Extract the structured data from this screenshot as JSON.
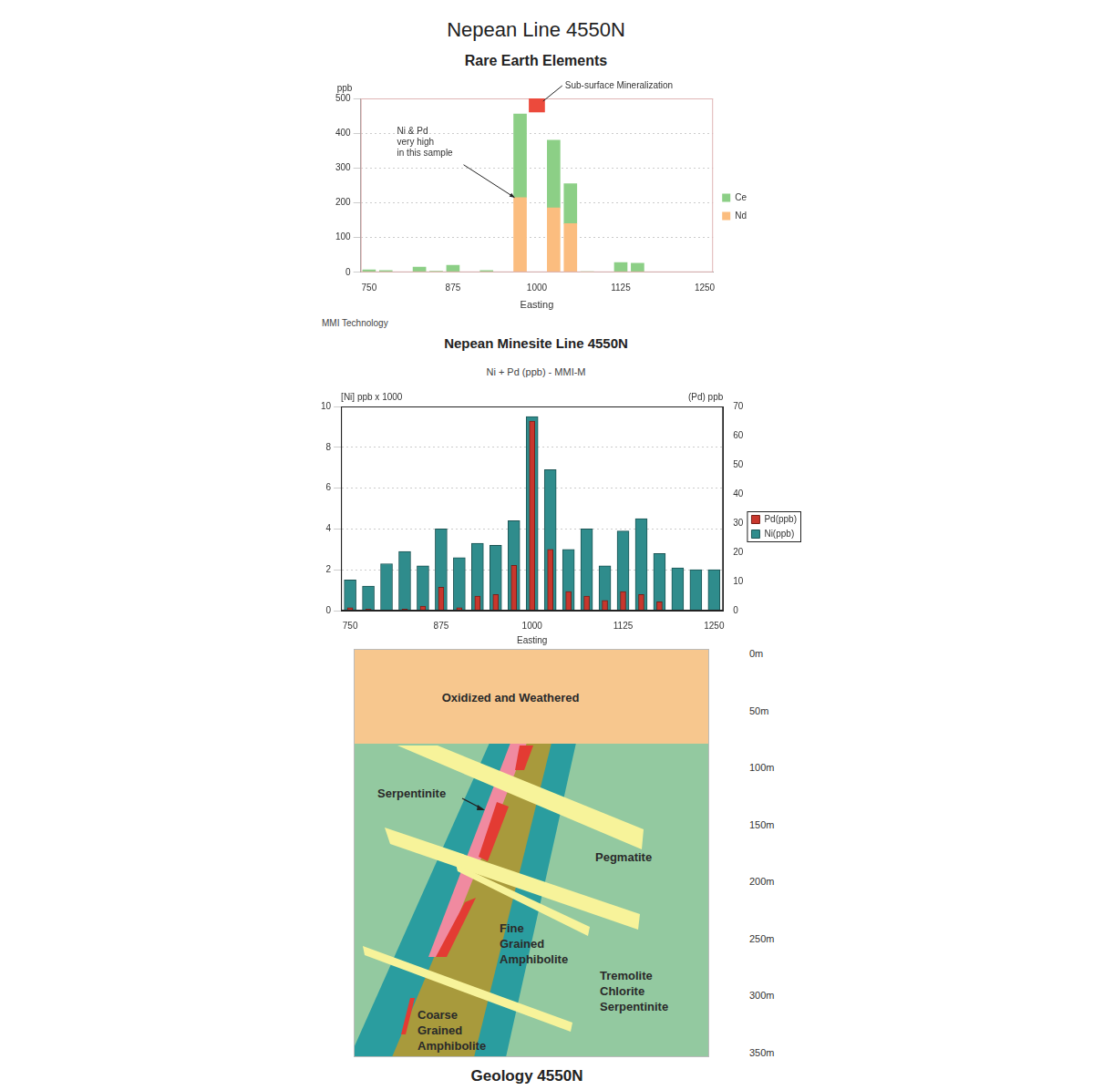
{
  "title": "Nepean Line 4550N",
  "chart_data": [
    {
      "type": "bar",
      "title": "Rare Earth Elements",
      "x_label": "Easting",
      "y_label": "ppb",
      "stacked": true,
      "grid": true,
      "legend": "right",
      "x": [
        750,
        775,
        825,
        850,
        875,
        925,
        975,
        1025,
        1050,
        1075,
        1125,
        1150
      ],
      "series": [
        {
          "name": "Ce",
          "color": "#8ccf86",
          "values": [
            7,
            5,
            15,
            3,
            20,
            5,
            240,
            195,
            115,
            2,
            28,
            26
          ]
        },
        {
          "name": "Nd",
          "color": "#fbbd7f",
          "values": [
            0,
            0,
            0,
            0,
            0,
            0,
            215,
            185,
            140,
            0,
            0,
            0
          ]
        }
      ],
      "xlim": [
        737.5,
        1262.5
      ],
      "xticks": [
        750,
        875,
        1000,
        1125,
        1250
      ],
      "ylim": [
        0,
        500
      ],
      "yticks": [
        0,
        100,
        200,
        300,
        400,
        500
      ],
      "annotations": [
        {
          "text": "Sub-surface Mineralization",
          "x": [
            988,
            1012
          ],
          "y": [
            460,
            500
          ],
          "color": "#ec4a3c"
        },
        {
          "text": [
            "Ni & Pd",
            "very high",
            "in this sample"
          ],
          "x": 975,
          "y": 215
        }
      ],
      "source": "MMI Technology"
    },
    {
      "type": "bar",
      "title": "Nepean Minesite Line 4550N",
      "subtitle": "Ni + Pd (ppb) - MMI-M",
      "x_label": "Easting",
      "y_label": "[Ni] ppb x 1000",
      "y2_label": "(Pd) ppb",
      "grid": true,
      "legend": "right",
      "x": [
        750,
        775,
        800,
        825,
        850,
        875,
        900,
        925,
        950,
        975,
        1000,
        1025,
        1050,
        1075,
        1100,
        1125,
        1150,
        1175,
        1200,
        1225,
        1250
      ],
      "series": [
        {
          "name": "Ni(ppb)",
          "color": "#2f8c8c",
          "values": [
            1.5,
            1.2,
            2.3,
            2.9,
            2.2,
            4.0,
            2.6,
            3.3,
            3.2,
            4.4,
            9.5,
            6.9,
            3.0,
            4.0,
            2.2,
            3.9,
            4.5,
            2.8,
            2.1,
            2.0,
            2.0
          ]
        },
        {
          "name": "Pd(ppb)",
          "color": "#c8372d",
          "axis": "y2",
          "values": [
            1,
            0.5,
            0,
            0.5,
            1.5,
            8,
            1,
            5,
            5.5,
            15.5,
            65,
            21,
            6.5,
            5,
            3.5,
            6.5,
            5.5,
            3,
            0,
            0,
            0
          ]
        }
      ],
      "xlim": [
        737.5,
        1262.5
      ],
      "xticks": [
        750,
        875,
        1000,
        1125,
        1250
      ],
      "ylim": [
        0,
        10
      ],
      "yticks": [
        0,
        2,
        4,
        6,
        8,
        10
      ],
      "y2lim": [
        0,
        70
      ],
      "y2ticks": [
        0,
        10,
        20,
        30,
        40,
        50,
        60,
        70
      ]
    }
  ],
  "geology": {
    "title": "Geology 4550N",
    "depth_ticks": [
      {
        "value": 0,
        "label": "0m"
      },
      {
        "value": 50,
        "label": "50m"
      },
      {
        "value": 100,
        "label": "100m"
      },
      {
        "value": 150,
        "label": "150m"
      },
      {
        "value": 200,
        "label": "200m"
      },
      {
        "value": 250,
        "label": "250m"
      },
      {
        "value": 300,
        "label": "300m"
      },
      {
        "value": 350,
        "label": "350m"
      }
    ],
    "units": [
      "Oxidized and Weathered",
      "Serpentinite",
      "Pegmatite",
      "Fine Grained Amphibolite",
      "Tremolite Chlorite Serpentinite",
      "Coarse Grained Amphibolite"
    ]
  }
}
